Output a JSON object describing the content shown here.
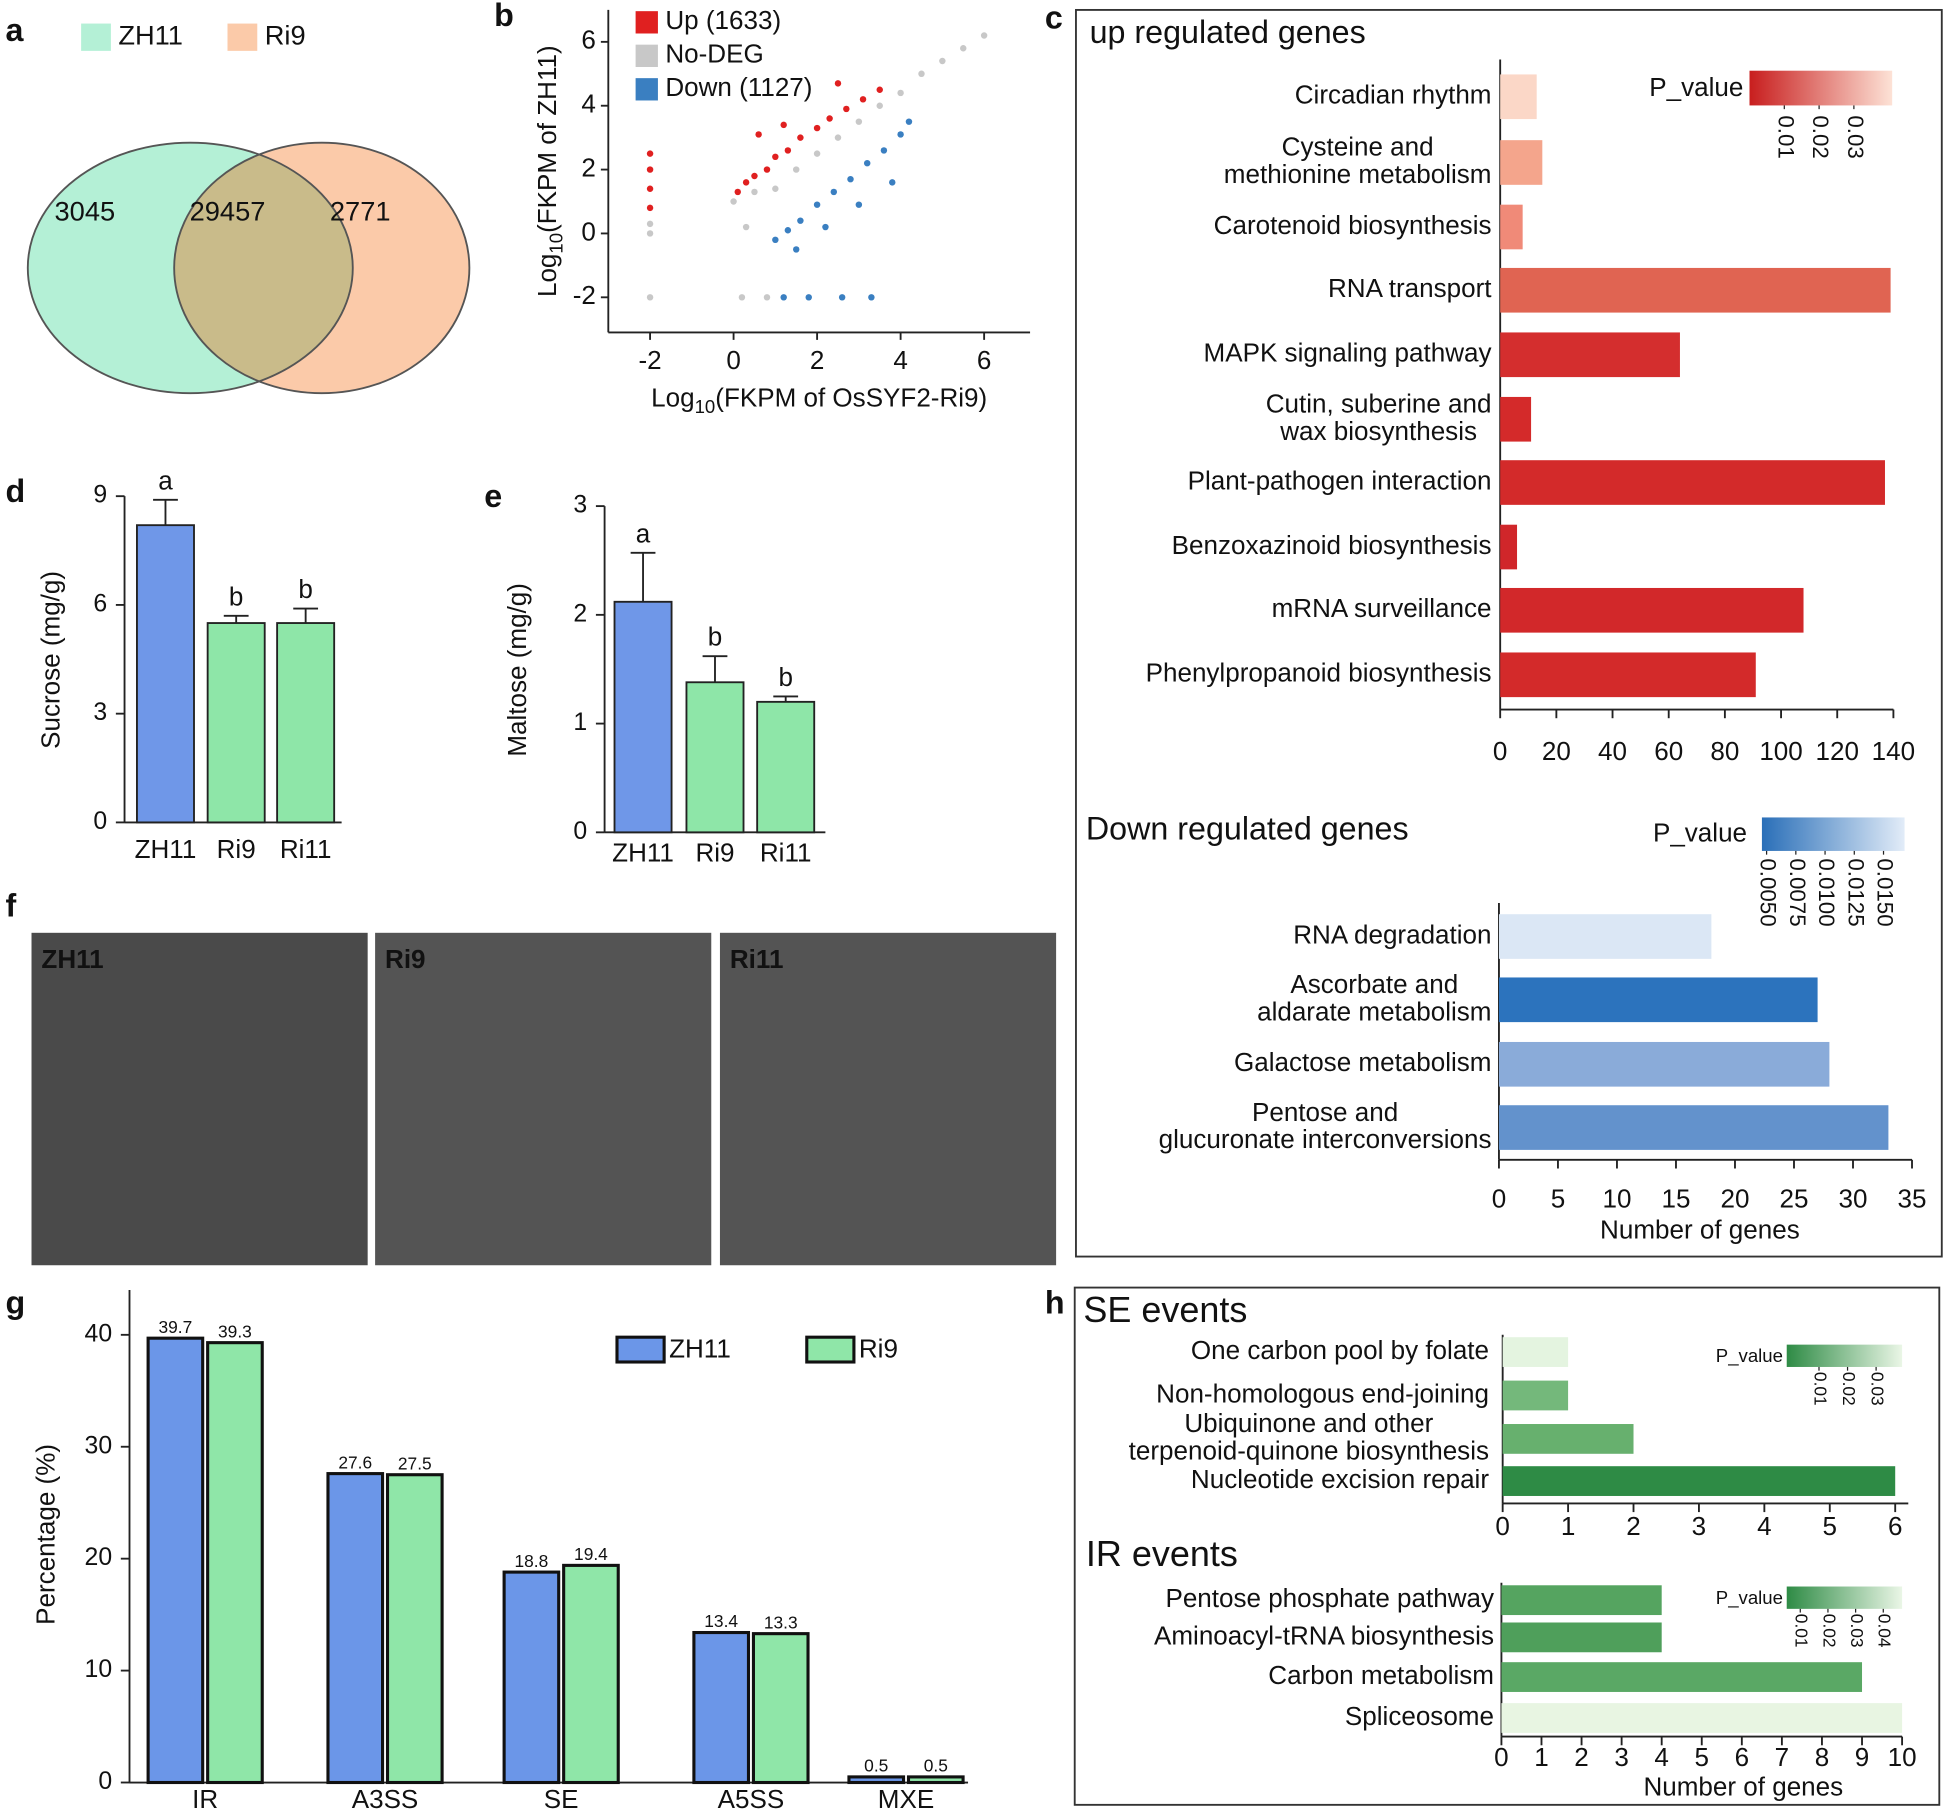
{
  "chart_data": [
    {
      "type": "venn",
      "panel": "a",
      "sets": [
        {
          "name": "ZH11",
          "color": "#b4f0d6"
        },
        {
          "name": "Ri9",
          "color": "#fbcaa9"
        }
      ],
      "overlap_color": "#c9bb8a",
      "values": [
        3045,
        29457,
        2771
      ]
    },
    {
      "type": "scatter",
      "panel": "b",
      "xlabel": [
        "Log",
        "10",
        "(FKPM of OsSYF2-Ri9)"
      ],
      "ylabel": [
        "Log",
        "10",
        "(FKPM of ZH11)"
      ],
      "xlim": [
        -3,
        7.1
      ],
      "ylim": [
        -3.1,
        7
      ],
      "xticks": [
        -2,
        0,
        2,
        4,
        6
      ],
      "yticks": [
        -2,
        0,
        2,
        4,
        6
      ],
      "series": [
        {
          "name": "Up (1633)",
          "color": "#e02020",
          "x": [
            -2,
            -2,
            -2,
            -2,
            0.1,
            0.3,
            0.5,
            0.8,
            1.0,
            1.3,
            1.6,
            2.0,
            2.3,
            2.7,
            3.1,
            3.5,
            0.6,
            1.2,
            2.5
          ],
          "y": [
            0.8,
            1.4,
            2.0,
            2.5,
            1.3,
            1.6,
            1.8,
            2.0,
            2.4,
            2.6,
            3.0,
            3.3,
            3.6,
            3.9,
            4.2,
            4.5,
            3.1,
            3.4,
            4.7
          ]
        },
        {
          "name": "No-DEG",
          "color": "#c8c8c8",
          "x": [
            -2,
            -2,
            -2,
            0,
            0.5,
            1,
            1.5,
            2,
            2.5,
            3,
            3.5,
            4,
            4.5,
            5,
            5.5,
            6,
            0.2,
            0.8,
            0.3
          ],
          "y": [
            0,
            -2,
            0.3,
            1,
            1.3,
            1.4,
            2,
            2.5,
            3,
            3.5,
            4,
            4.4,
            5,
            5.4,
            5.8,
            6.2,
            -2,
            -2,
            0.2
          ]
        },
        {
          "name": "Down (1127)",
          "color": "#3a7fc1",
          "x": [
            1.0,
            1.3,
            1.6,
            2.0,
            2.4,
            2.8,
            3.2,
            3.6,
            4.0,
            4.2,
            1.2,
            1.8,
            2.6,
            3.3,
            1.5,
            2.2,
            3.0,
            3.8
          ],
          "y": [
            -0.2,
            0.1,
            0.4,
            0.9,
            1.3,
            1.7,
            2.2,
            2.6,
            3.1,
            3.5,
            -2,
            -2,
            -2,
            -2,
            -0.5,
            0.2,
            0.9,
            1.6
          ]
        }
      ]
    },
    {
      "type": "hbar",
      "panel": "c",
      "title": "up regulated genes",
      "title_color": "#e02020",
      "categories": [
        [
          "Circadian rhythm"
        ],
        [
          "Cysteine and",
          "methionine metabolism"
        ],
        [
          "Carotenoid biosynthesis"
        ],
        [
          "RNA transport"
        ],
        [
          "MAPK signaling pathway"
        ],
        [
          "Cutin, suberine and",
          "wax biosynthesis"
        ],
        [
          "Plant-pathogen interaction"
        ],
        [
          "Benzoxazinoid biosynthesis"
        ],
        [
          "mRNA surveillance"
        ],
        [
          "Phenylpropanoid biosynthesis"
        ]
      ],
      "values": [
        13,
        15,
        8,
        139,
        64,
        11,
        137,
        6,
        108,
        91
      ],
      "colors": [
        "#fbd7c7",
        "#f4a58c",
        "#f08a78",
        "#e06452",
        "#d42e2e",
        "#d42a2a",
        "#d32a2a",
        "#d0262a",
        "#d2282a",
        "#d32a2a"
      ],
      "xlim": [
        0,
        140
      ],
      "xticks": [
        0,
        20,
        40,
        60,
        80,
        100,
        120,
        140
      ],
      "colorbar": {
        "label": "P_value",
        "colors": [
          "#c81e1e",
          "#fde2d6"
        ],
        "lim": [
          0,
          0.041
        ],
        "ticks": [
          0.01,
          0.02,
          0.03
        ]
      }
    },
    {
      "type": "hbar",
      "title": "Down regulated genes",
      "title_color": "#2a86d0",
      "categories": [
        [
          "RNA degradation"
        ],
        [
          "Ascorbate and",
          "aldarate metabolism"
        ],
        [
          "Galactose metabolism"
        ],
        [
          "Pentose and",
          "glucuronate interconversions"
        ]
      ],
      "values": [
        18,
        27,
        28,
        33
      ],
      "colors": [
        "#dbe7f5",
        "#2c73bd",
        "#8aabd9",
        "#6392cc"
      ],
      "xlim": [
        0,
        35
      ],
      "xticks": [
        0,
        5,
        10,
        15,
        20,
        25,
        30,
        35
      ],
      "xlabel": "Number of genes",
      "colorbar": {
        "label": "P_value",
        "colors": [
          "#2a6fb8",
          "#e2ecf8"
        ],
        "lim": [
          0.0046,
          0.0168
        ],
        "ticks": [
          {
            "value": 0.005,
            "label": "0.0050"
          },
          0.0075,
          {
            "value": 0.01,
            "label": "0.0100"
          },
          0.0125,
          {
            "value": 0.015,
            "label": "0.0150"
          }
        ]
      }
    },
    {
      "type": "bar",
      "panel": "d",
      "categories": [
        "ZH11",
        "Ri9",
        "Ri11"
      ],
      "values": [
        8.2,
        5.5,
        5.5
      ],
      "errors": [
        0.7,
        0.2,
        0.4
      ],
      "letters": [
        "a",
        "b",
        "b"
      ],
      "colors": [
        "#6f97e8",
        "#8ee6a8",
        "#8ee6a8"
      ],
      "ylabel": "Sucrose (mg/g)",
      "ylim": [
        0,
        9
      ],
      "yticks": [
        0,
        3,
        6,
        9
      ]
    },
    {
      "type": "bar",
      "panel": "e",
      "categories": [
        "ZH11",
        "Ri9",
        "Ri11"
      ],
      "values": [
        2.12,
        1.38,
        1.2
      ],
      "errors": [
        0.45,
        0.24,
        0.05
      ],
      "letters": [
        "a",
        "b",
        "b"
      ],
      "colors": [
        "#6f97e8",
        "#8ee6a8",
        "#8ee6a8"
      ],
      "ylabel": "Maltose (mg/g)",
      "ylim": [
        0,
        3
      ],
      "yticks": [
        0,
        1,
        2,
        3
      ]
    },
    {
      "type": "image",
      "panel": "f",
      "labels": [
        "ZH11",
        "Ri9",
        "Ri11"
      ]
    },
    {
      "type": "grouped_bar",
      "panel": "g",
      "categories": [
        "IR",
        "A3SS",
        "SE",
        "A5SS",
        "MXE"
      ],
      "series": [
        {
          "name": "ZH11",
          "color": "#6b96e8",
          "values": [
            39.7,
            27.6,
            18.8,
            13.4,
            0.5
          ]
        },
        {
          "name": "Ri9",
          "color": "#8fe6a8",
          "values": [
            39.3,
            27.5,
            19.4,
            13.3,
            0.5
          ]
        }
      ],
      "ylabel": "Percentage (%)",
      "ylim": [
        0,
        44
      ],
      "yticks": [
        0,
        10,
        20,
        30,
        40
      ]
    },
    {
      "type": "hbar",
      "panel": "h",
      "title": "SE events",
      "title_color": "#1e7a3c",
      "categories": [
        [
          "One carbon pool by folate"
        ],
        [
          "Non-homologous end-joining"
        ],
        [
          "Ubiquinone and other",
          "terpenoid-quinone biosynthesis"
        ],
        [
          "Nucleotide excision repair"
        ]
      ],
      "values": [
        1,
        1,
        2,
        6
      ],
      "colors": [
        "#e4f4e0",
        "#74b87b",
        "#67b06e",
        "#2e8b45"
      ],
      "xlim": [
        0,
        6.2
      ],
      "xticks": [
        0,
        1,
        2,
        3,
        4,
        5,
        6
      ],
      "colorbar": {
        "label": "P_value",
        "colors": [
          "#2e8b45",
          "#eaf6e6"
        ],
        "lim": [
          -0.0013,
          0.0391
        ],
        "ticks": [
          0.01,
          0.02,
          0.03
        ]
      }
    },
    {
      "type": "hbar",
      "title": "IR events",
      "title_color": "#1e7a3c",
      "categories": [
        [
          "Pentose phosphate pathway"
        ],
        [
          "Aminoacyl-tRNA biosynthesis"
        ],
        [
          "Carbon metabolism"
        ],
        [
          "Spliceosome"
        ]
      ],
      "values": [
        4,
        4,
        9,
        10
      ],
      "colors": [
        "#55a460",
        "#4f9f5b",
        "#5aa865",
        "#e8f5e2"
      ],
      "xlim": [
        0,
        10
      ],
      "xticks": [
        0,
        1,
        2,
        3,
        4,
        5,
        6,
        7,
        8,
        9,
        10
      ],
      "xlabel": "Number of genes",
      "colorbar": {
        "label": "P_value",
        "colors": [
          "#2e8b45",
          "#eaf6e6"
        ],
        "lim": [
          0.0051,
          0.0468
        ],
        "ticks": [
          0.01,
          0.02,
          0.03,
          0.04
        ]
      }
    }
  ]
}
